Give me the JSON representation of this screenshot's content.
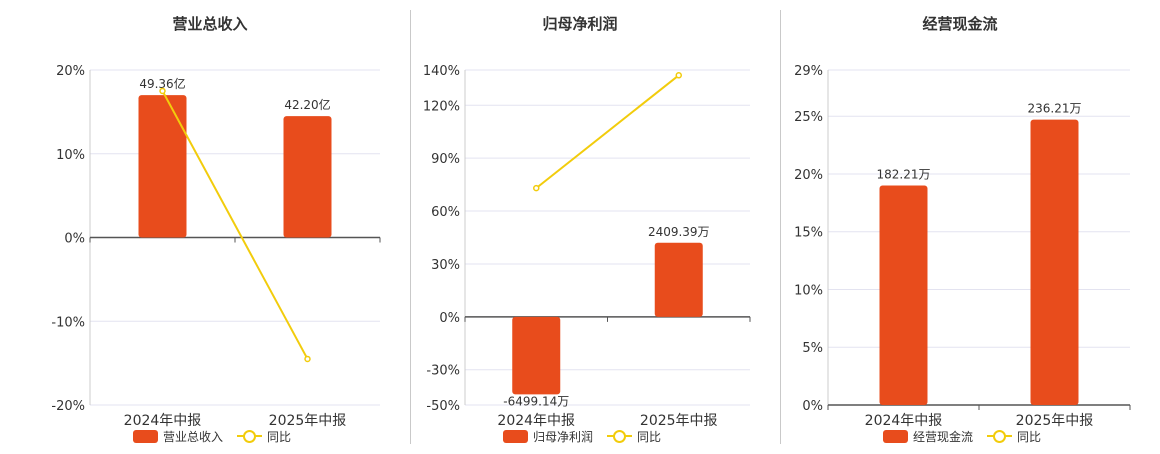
{
  "colors": {
    "bar": "#e84c1c",
    "line": "#f2cc0c",
    "grid": "#e3e3f0",
    "axis": "#555555",
    "text": "#333333"
  },
  "chart_data": [
    {
      "type": "bar",
      "title": "营业总收入",
      "categories": [
        "2024年中报",
        "2025年中报"
      ],
      "bar_series": {
        "name": "营业总收入",
        "values": [
          17.0,
          14.5
        ],
        "labels": [
          "49.36亿",
          "42.20亿"
        ]
      },
      "line_series": {
        "name": "同比",
        "values": [
          17.5,
          -14.5
        ]
      },
      "ylim": [
        -20,
        20
      ],
      "yticks": [
        20,
        10,
        0,
        -10,
        -20
      ],
      "ytick_labels": [
        "20%",
        "10%",
        "0%",
        "-10%",
        "-20%"
      ],
      "legend": [
        "营业总收入",
        "同比"
      ]
    },
    {
      "type": "bar",
      "title": "归母净利润",
      "categories": [
        "2024年中报",
        "2025年中报"
      ],
      "bar_series": {
        "name": "归母净利润",
        "values": [
          -44,
          42
        ],
        "labels": [
          "-6499.14万",
          "2409.39万"
        ]
      },
      "line_series": {
        "name": "同比",
        "values": [
          73,
          137
        ]
      },
      "ylim": [
        -50,
        140
      ],
      "yticks": [
        140,
        120,
        90,
        60,
        30,
        0,
        -30,
        -50
      ],
      "ytick_labels": [
        "140%",
        "120%",
        "90%",
        "60%",
        "30%",
        "0%",
        "-30%",
        "-50%"
      ],
      "legend": [
        "归母净利润",
        "同比"
      ]
    },
    {
      "type": "bar",
      "title": "经营现金流",
      "categories": [
        "2024年中报",
        "2025年中报"
      ],
      "bar_series": {
        "name": "经营现金流",
        "values": [
          19.0,
          24.7
        ],
        "labels": [
          "182.21万",
          "236.21万"
        ]
      },
      "line_series": {
        "name": "同比",
        "values": []
      },
      "ylim": [
        0,
        29
      ],
      "yticks": [
        29,
        25,
        20,
        15,
        10,
        5,
        0
      ],
      "ytick_labels": [
        "29%",
        "25%",
        "20%",
        "15%",
        "10%",
        "5%",
        "0%"
      ],
      "legend": [
        "经营现金流",
        "同比"
      ]
    }
  ]
}
